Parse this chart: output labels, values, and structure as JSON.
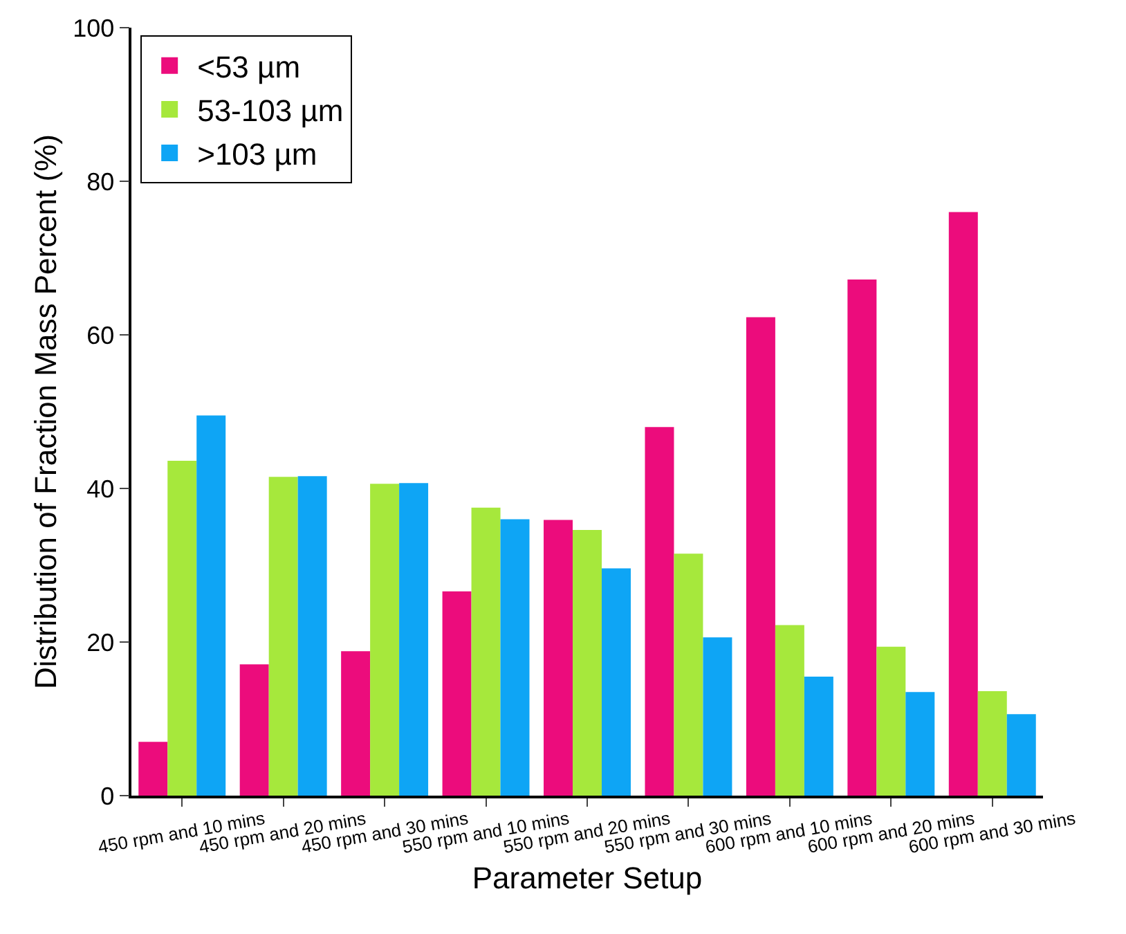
{
  "chart_data": {
    "type": "bar",
    "xlabel": "Parameter Setup",
    "ylabel": "Distribution of Fraction Mass Percent (%)",
    "categories": [
      "450 rpm and 10 mins",
      "450 rpm and 20 mins",
      "450 rpm and 30 mins",
      "550 rpm and 10 mins",
      "550 rpm and 20 mins",
      "550 rpm and 30 mins",
      "600 rpm and 10 mins",
      "600 rpm and 20 mins",
      "600 rpm and 30 mins"
    ],
    "series": [
      {
        "name": "<53 µm",
        "color": "#ec0c7c",
        "values": [
          7.0,
          17.1,
          18.8,
          26.6,
          35.9,
          48.0,
          62.3,
          67.2,
          76.0
        ]
      },
      {
        "name": "53-103 µm",
        "color": "#a6e83c",
        "values": [
          43.6,
          41.5,
          40.6,
          37.5,
          34.6,
          31.5,
          22.2,
          19.4,
          13.6
        ]
      },
      {
        "name": ">103 µm",
        "color": "#0ea5f5",
        "values": [
          49.5,
          41.6,
          40.7,
          36.0,
          29.6,
          20.6,
          15.5,
          13.5,
          10.6
        ]
      }
    ],
    "ylim": [
      0,
      100
    ],
    "yticks": [
      0,
      20,
      40,
      60,
      80,
      100
    ],
    "grid": false,
    "legend": "top left"
  }
}
